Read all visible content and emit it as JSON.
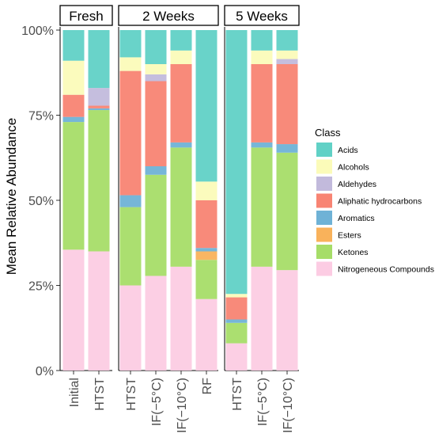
{
  "chart_data": {
    "type": "bar",
    "stacked": true,
    "ylabel": "Mean Relative Abundance",
    "ylim": [
      0,
      100
    ],
    "y_ticks": [
      "0%",
      "25%",
      "50%",
      "75%",
      "100%"
    ],
    "legend_position": "right",
    "legend": {
      "title": "Class",
      "entries": [
        "Acids",
        "Alcohols",
        "Aldehydes",
        "Aliphatic hydrocarbons",
        "Aromatics",
        "Esters",
        "Ketones",
        "Nitrogeneous Compounds"
      ]
    },
    "colors": {
      "Acids": "#61D1C6",
      "Alcohols": "#FBFBB9",
      "Aldehydes": "#C2BADC",
      "Aliphatic hydrocarbons": "#F88473",
      "Aromatics": "#6FB2D6",
      "Esters": "#F9B25B",
      "Ketones": "#A6DD68",
      "Nitrogeneous Compounds": "#FCCCE3"
    },
    "panels": [
      {
        "label": "Fresh",
        "bars": [
          {
            "label": "Initial",
            "values": {
              "Nitrogeneous Compounds": 35.5,
              "Ketones": 37.5,
              "Esters": 0,
              "Aromatics": 1.5,
              "Aliphatic hydrocarbons": 6.5,
              "Aldehydes": 0,
              "Alcohols": 10,
              "Acids": 9
            }
          },
          {
            "label": "HTST",
            "values": {
              "Nitrogeneous Compounds": 35,
              "Ketones": 41.5,
              "Esters": 0,
              "Aromatics": 0.5,
              "Aliphatic hydrocarbons": 0.8,
              "Aldehydes": 5.2,
              "Alcohols": 0,
              "Acids": 17
            }
          }
        ]
      },
      {
        "label": "2 Weeks",
        "bars": [
          {
            "label": "HTST",
            "values": {
              "Nitrogeneous Compounds": 25,
              "Ketones": 23,
              "Esters": 0,
              "Aromatics": 3.5,
              "Aliphatic hydrocarbons": 36.5,
              "Aldehydes": 0,
              "Alcohols": 4,
              "Acids": 8
            }
          },
          {
            "label": "IF(−5°C)",
            "values": {
              "Nitrogeneous Compounds": 27.8,
              "Ketones": 29.7,
              "Esters": 0,
              "Aromatics": 2.5,
              "Aliphatic hydrocarbons": 25,
              "Aldehydes": 2,
              "Alcohols": 3,
              "Acids": 10
            }
          },
          {
            "label": "IF(−10°C)",
            "values": {
              "Nitrogeneous Compounds": 30.5,
              "Ketones": 35,
              "Esters": 0,
              "Aromatics": 1.5,
              "Aliphatic hydrocarbons": 23,
              "Aldehydes": 0,
              "Alcohols": 4,
              "Acids": 6
            }
          },
          {
            "label": "RF",
            "values": {
              "Nitrogeneous Compounds": 21,
              "Ketones": 11.5,
              "Esters": 2.5,
              "Aromatics": 1,
              "Aliphatic hydrocarbons": 14,
              "Aldehydes": 0,
              "Alcohols": 5.5,
              "Acids": 44.5
            }
          }
        ]
      },
      {
        "label": "5 Weeks",
        "bars": [
          {
            "label": "HTST",
            "values": {
              "Nitrogeneous Compounds": 8,
              "Ketones": 6,
              "Esters": 0,
              "Aromatics": 1,
              "Aliphatic hydrocarbons": 6.5,
              "Aldehydes": 0,
              "Alcohols": 1,
              "Acids": 77.5
            }
          },
          {
            "label": "IF(−5°C)",
            "values": {
              "Nitrogeneous Compounds": 30.5,
              "Ketones": 35,
              "Esters": 0,
              "Aromatics": 1.5,
              "Aliphatic hydrocarbons": 23,
              "Aldehydes": 0,
              "Alcohols": 4,
              "Acids": 6
            }
          },
          {
            "label": "IF(−10°C)",
            "values": {
              "Nitrogeneous Compounds": 29.5,
              "Ketones": 34.5,
              "Esters": 0,
              "Aromatics": 2.5,
              "Aliphatic hydrocarbons": 23.5,
              "Aldehydes": 1.5,
              "Alcohols": 2.5,
              "Acids": 6
            }
          }
        ]
      }
    ]
  }
}
